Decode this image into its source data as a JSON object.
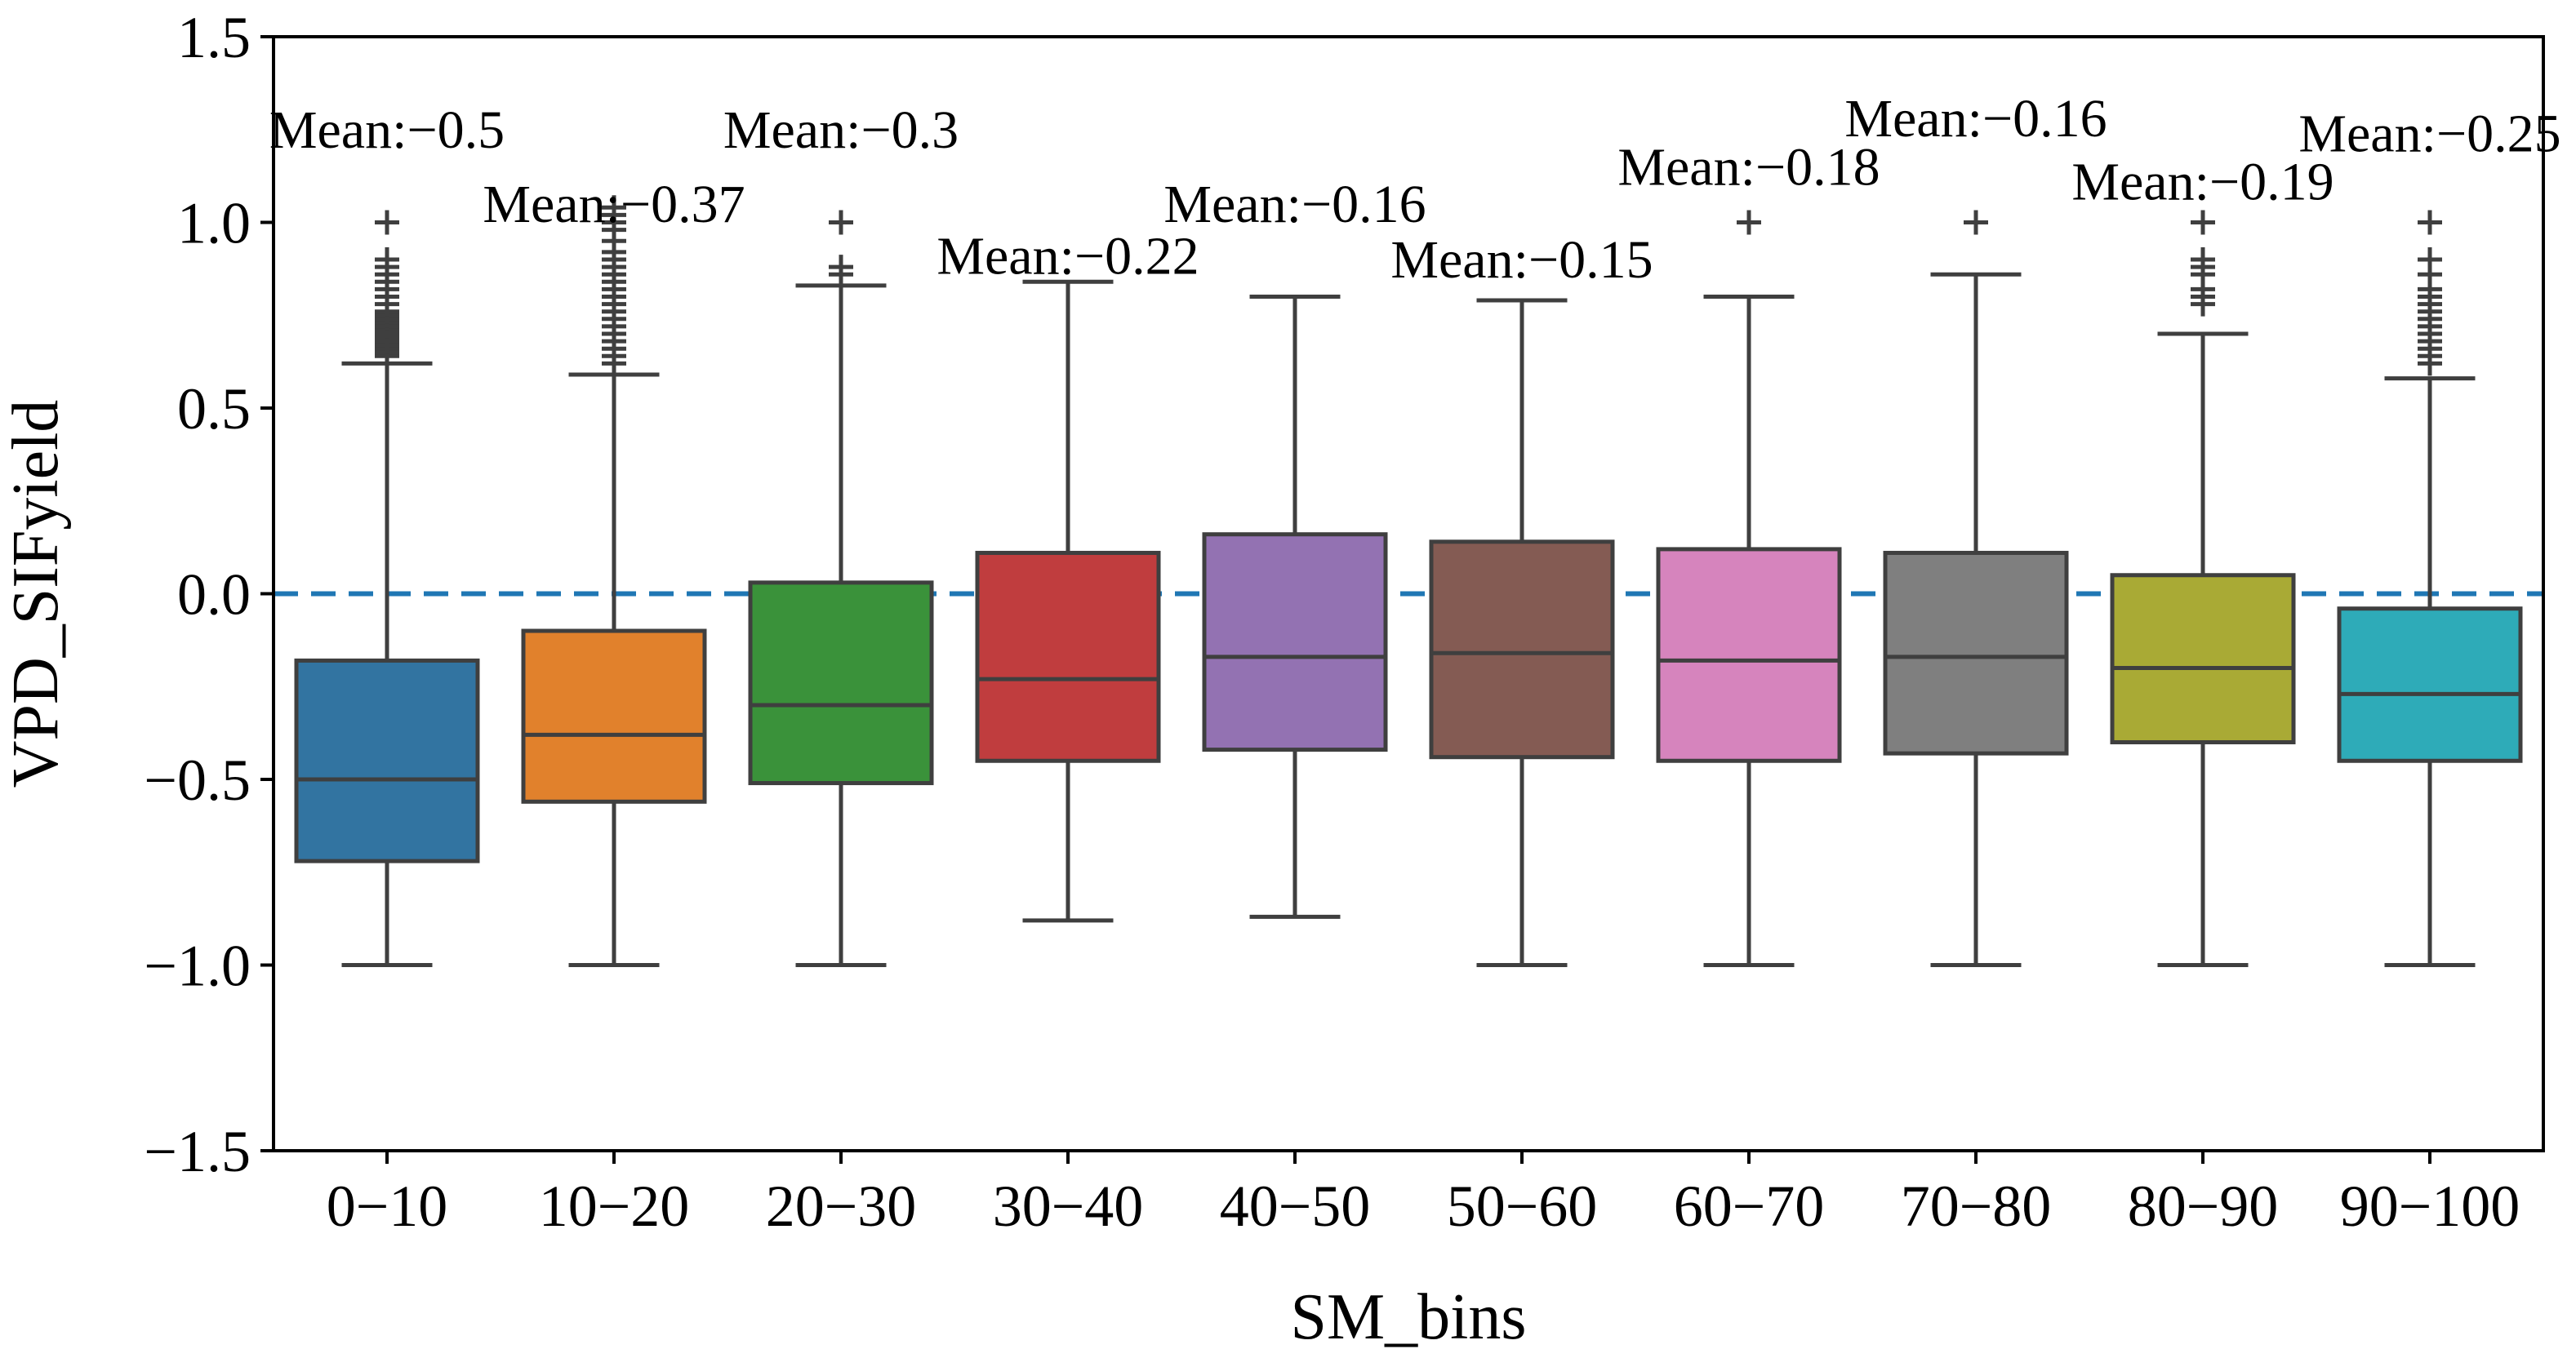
{
  "chart_data": {
    "type": "box",
    "xlabel": "SM_bins",
    "ylabel": "VPD_SIFyield",
    "ylim": [
      -1.5,
      1.5
    ],
    "yticks": [
      -1.5,
      -1.0,
      -0.5,
      0.0,
      0.5,
      1.0,
      1.5
    ],
    "ytick_labels": [
      "−1.5",
      "−1.0",
      "−0.5",
      "0.0",
      "0.5",
      "1.0",
      "1.5"
    ],
    "reference_line": {
      "y": 0.0,
      "style": "dashed",
      "color": "#1f77b4"
    },
    "grid": false,
    "categories": [
      "0−10",
      "10−20",
      "20−30",
      "30−40",
      "40−50",
      "50−60",
      "60−70",
      "70−80",
      "80−90",
      "90−100"
    ],
    "colors": [
      "#3274a1",
      "#e1812c",
      "#3a923a",
      "#c03d3e",
      "#9372b2",
      "#845b53",
      "#d684bd",
      "#7f7f7f",
      "#a9aa35",
      "#2eabb8"
    ],
    "mean_labels": [
      "Mean:−0.5",
      "Mean:−0.37",
      "Mean:−0.3",
      "Mean:−0.22",
      "Mean:−0.16",
      "Mean:−0.15",
      "Mean:−0.18",
      "Mean:−0.16",
      "Mean:−0.19",
      "Mean:−0.25"
    ],
    "mean_label_y": [
      1.25,
      1.05,
      1.25,
      0.91,
      1.05,
      0.9,
      1.15,
      1.28,
      1.11,
      1.24
    ],
    "boxes": [
      {
        "q1": -0.72,
        "median": -0.5,
        "q3": -0.18,
        "whisker_low": -1.0,
        "whisker_high": 0.62,
        "outliers": [
          0.64,
          0.65,
          0.66,
          0.67,
          0.68,
          0.69,
          0.7,
          0.71,
          0.72,
          0.73,
          0.74,
          0.75,
          0.76,
          0.78,
          0.8,
          0.82,
          0.84,
          0.86,
          0.88,
          0.9,
          1.0
        ]
      },
      {
        "q1": -0.56,
        "median": -0.38,
        "q3": -0.1,
        "whisker_low": -1.0,
        "whisker_high": 0.59,
        "outliers": [
          0.62,
          0.64,
          0.66,
          0.68,
          0.7,
          0.72,
          0.74,
          0.76,
          0.78,
          0.8,
          0.82,
          0.84,
          0.86,
          0.88,
          0.9,
          0.92,
          0.95,
          0.98,
          1.0,
          1.02,
          1.04
        ]
      },
      {
        "q1": -0.51,
        "median": -0.3,
        "q3": 0.03,
        "whisker_low": -1.0,
        "whisker_high": 0.83,
        "outliers": [
          0.86,
          0.88,
          1.0
        ]
      },
      {
        "q1": -0.45,
        "median": -0.23,
        "q3": 0.11,
        "whisker_low": -0.88,
        "whisker_high": 0.84,
        "outliers": []
      },
      {
        "q1": -0.42,
        "median": -0.17,
        "q3": 0.16,
        "whisker_low": -0.87,
        "whisker_high": 0.8,
        "outliers": []
      },
      {
        "q1": -0.44,
        "median": -0.16,
        "q3": 0.14,
        "whisker_low": -1.0,
        "whisker_high": 0.79,
        "outliers": []
      },
      {
        "q1": -0.45,
        "median": -0.18,
        "q3": 0.12,
        "whisker_low": -1.0,
        "whisker_high": 0.8,
        "outliers": [
          1.0
        ]
      },
      {
        "q1": -0.43,
        "median": -0.17,
        "q3": 0.11,
        "whisker_low": -1.0,
        "whisker_high": 0.86,
        "outliers": [
          1.0
        ]
      },
      {
        "q1": -0.4,
        "median": -0.2,
        "q3": 0.05,
        "whisker_low": -1.0,
        "whisker_high": 0.7,
        "outliers": [
          0.78,
          0.8,
          0.82,
          0.86,
          0.88,
          0.9,
          1.0
        ]
      },
      {
        "q1": -0.45,
        "median": -0.27,
        "q3": -0.04,
        "whisker_low": -1.0,
        "whisker_high": 0.58,
        "outliers": [
          0.62,
          0.64,
          0.66,
          0.68,
          0.7,
          0.72,
          0.74,
          0.76,
          0.78,
          0.8,
          0.82,
          0.86,
          0.9,
          1.0
        ]
      }
    ]
  }
}
